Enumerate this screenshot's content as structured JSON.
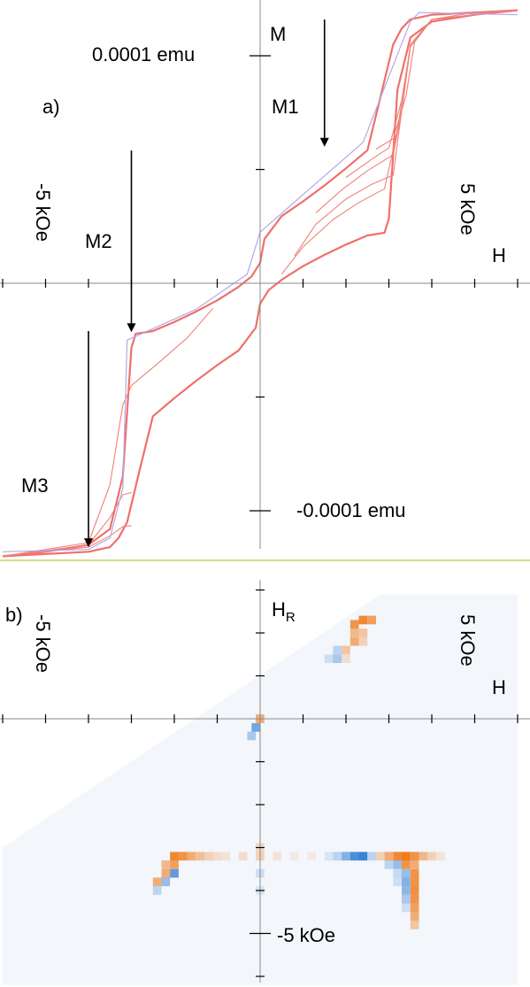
{
  "chart_data": [
    {
      "type": "line",
      "panel_label": "a)",
      "x_label": "H",
      "y_label": "M",
      "x_tick_label_left": "-5 kOe",
      "x_tick_label_right": "5 kOe",
      "y_tick_label_top": "0.0001 emu",
      "y_tick_label_bottom": "-0.0001 emu",
      "xlim": [
        -6,
        6
      ],
      "ylim": [
        -0.00012,
        0.00012
      ],
      "annotations": [
        {
          "text": "M1",
          "x": 1.5,
          "y": 6e-05
        },
        {
          "text": "M2",
          "x": -3,
          "y": -2.15e-05
        },
        {
          "text": "M3",
          "x": -4,
          "y": -0.000116
        }
      ],
      "series": [
        {
          "role": "major-branch-descending",
          "x": [
            6,
            4,
            3.5,
            3.3,
            3.1,
            2.8,
            2.5,
            2,
            1.5,
            1,
            0.5,
            0.1,
            0,
            -0.2,
            -0.5,
            -1,
            -1.5,
            -2,
            -2.5,
            -2.9,
            -3,
            -3.2,
            -3.5,
            -4,
            -5,
            -6
          ],
          "y": [
            0.00012,
            0.000118,
            0.000116,
            0.000112,
            0.000105,
            8.15e-05,
            5.85e-05,
            5.05e-05,
            4.3e-05,
            3.6e-05,
            2.95e-05,
            1.95e-05,
            9e-06,
            3e-06,
            -1.5e-06,
            -7.5e-06,
            -1.25e-05,
            -1.7e-05,
            -2.1e-05,
            -2.22e-05,
            -2.85e-05,
            -8.5e-05,
            -0.000108,
            -0.000115,
            -0.000118,
            -0.00012
          ]
        },
        {
          "role": "major-branch-ascending",
          "x": [
            -6,
            -4,
            -3.5,
            -3.3,
            -3.1,
            -2.8,
            -2.5,
            -2,
            -1.5,
            -1,
            -0.5,
            -0.1,
            0,
            0.2,
            0.5,
            1,
            1.5,
            2,
            2.5,
            2.9,
            3,
            3.2,
            3.5,
            4,
            5,
            6
          ],
          "y": [
            -0.00012,
            -0.000118,
            -0.000116,
            -0.000112,
            -0.000105,
            -8.15e-05,
            -5.85e-05,
            -5.05e-05,
            -4.3e-05,
            -3.6e-05,
            -2.95e-05,
            -1.95e-05,
            -9e-06,
            -3e-06,
            1.5e-06,
            7.5e-06,
            1.25e-05,
            1.7e-05,
            2.1e-05,
            2.22e-05,
            2.85e-05,
            8.5e-05,
            0.000108,
            0.000115,
            0.000118,
            0.00012
          ]
        },
        {
          "role": "first-order-reversal-upper",
          "x": [
            0.8,
            1.3,
            2,
            2.6,
            3.1,
            3.5,
            4,
            5,
            6
          ],
          "y": [
            1.2e-05,
            2.6e-05,
            3.7e-05,
            4.35e-05,
            4.75e-05,
            0.000105,
            0.000116,
            0.000119,
            0.00012
          ]
        },
        {
          "role": "first-order-reversal-upper",
          "x": [
            0.5,
            1,
            1.7,
            2.3,
            2.9,
            3.2,
            3.5,
            4,
            6
          ],
          "y": [
            4e-06,
            1.6e-05,
            2.8e-05,
            3.55e-05,
            4.15e-05,
            6.75e-05,
            0.000104,
            0.000116,
            0.00012
          ]
        },
        {
          "role": "first-order-reversal-upper",
          "x": [
            1.3,
            1.9,
            2.5,
            3.1,
            3.3,
            3.5,
            4,
            6
          ],
          "y": [
            3.1e-05,
            4.1e-05,
            4.95e-05,
            5.65e-05,
            7.55e-05,
            0.000104,
            0.000116,
            0.00012
          ]
        },
        {
          "role": "first-order-reversal-upper",
          "x": [
            2,
            2.6,
            3,
            3.3,
            3.5,
            4,
            6
          ],
          "y": [
            4.65e-05,
            5.45e-05,
            5.95e-05,
            8.05e-05,
            0.000104,
            0.000116,
            0.00012
          ]
        },
        {
          "role": "first-order-reversal-upper",
          "x": [
            2.7,
            3.1,
            3.4,
            3.6,
            4,
            6
          ],
          "y": [
            5.9e-05,
            6.35e-05,
            8.25e-05,
            0.000106,
            0.000116,
            0.00012
          ]
        },
        {
          "role": "first-order-reversal-lower",
          "x": [
            -1.1,
            -1.7,
            -2.4,
            -3,
            -3.2,
            -3.5,
            -4,
            -6
          ],
          "y": [
            -1.1e-05,
            -2.4e-05,
            -3.55e-05,
            -4.5e-05,
            -5.35e-05,
            -8.85e-05,
            -0.000114,
            -0.00012
          ]
        },
        {
          "role": "first-order-reversal-lower",
          "x": [
            -3,
            -3.2,
            -3.5,
            -4,
            -6
          ],
          "y": [
            -9.2e-05,
            -9.3e-05,
            -0.000103,
            -0.000115,
            -0.00012
          ]
        },
        {
          "role": "first-order-reversal-lower",
          "x": [
            -3,
            -3.2,
            -3.5,
            -4,
            -6
          ],
          "y": [
            -0.0001065,
            -0.000107,
            -0.000111,
            -0.000116,
            -0.00012
          ]
        },
        {
          "role": "initial-magnetization",
          "x": [
            6,
            3.7,
            3.5,
            2.4,
            0,
            -0.3,
            -1.5,
            -3.1,
            -3.2,
            -3.5,
            -4,
            -6
          ],
          "y": [
            0.000118,
            0.000119,
            0.000115,
            6.2e-05,
            2.25e-05,
            4e-06,
            -1.15e-05,
            -2.5e-05,
            -9e-05,
            -0.000112,
            -0.000117,
            -0.000118
          ]
        }
      ]
    },
    {
      "type": "heatmap",
      "panel_label": "b)",
      "x_label": "H",
      "y_label": "HR",
      "y_label_main": "H",
      "y_label_sub": "R",
      "x_tick_label_left": "-5 kOe",
      "x_tick_label_right": "5 kOe",
      "y_tick_label_bottom": "-5 kOe",
      "xlim": [
        -6,
        6
      ],
      "ylim": [
        -6.2,
        3.5
      ],
      "colors": {
        "positive": "#f07c1c",
        "negative": "#3a84d6",
        "background": "#dce6f4"
      },
      "cells": [
        {
          "x": 2.2,
          "y": 2.2,
          "v": 0.8
        },
        {
          "x": 2.4,
          "y": 2.3,
          "v": 0.9
        },
        {
          "x": 2.6,
          "y": 2.3,
          "v": 0.7
        },
        {
          "x": 2.2,
          "y": 2.0,
          "v": 0.5
        },
        {
          "x": 2.4,
          "y": 2.0,
          "v": 0.4
        },
        {
          "x": 2.2,
          "y": 1.8,
          "v": 0.6
        },
        {
          "x": 2.4,
          "y": 1.8,
          "v": 0.3
        },
        {
          "x": 2.0,
          "y": 1.6,
          "v": 0.4
        },
        {
          "x": 1.8,
          "y": 1.6,
          "v": -0.3
        },
        {
          "x": 2.0,
          "y": 1.4,
          "v": 0.2
        },
        {
          "x": 1.8,
          "y": 1.4,
          "v": -0.4
        },
        {
          "x": 1.6,
          "y": 1.4,
          "v": -0.2
        },
        {
          "x": 0.0,
          "y": 0.0,
          "v": 0.6
        },
        {
          "x": -0.1,
          "y": -0.2,
          "v": -0.7
        },
        {
          "x": -0.2,
          "y": -0.4,
          "v": -0.4
        },
        {
          "x": -2.0,
          "y": -3.2,
          "v": 0.9
        },
        {
          "x": -1.8,
          "y": -3.2,
          "v": 0.8
        },
        {
          "x": -1.6,
          "y": -3.2,
          "v": 0.6
        },
        {
          "x": -1.4,
          "y": -3.2,
          "v": 0.45
        },
        {
          "x": -1.2,
          "y": -3.2,
          "v": 0.3
        },
        {
          "x": -1.0,
          "y": -3.2,
          "v": 0.2
        },
        {
          "x": -0.8,
          "y": -3.2,
          "v": 0.15
        },
        {
          "x": -0.4,
          "y": -3.2,
          "v": 0.2
        },
        {
          "x": 0.0,
          "y": -3.2,
          "v": 0.3
        },
        {
          "x": 0.4,
          "y": -3.2,
          "v": 0.15
        },
        {
          "x": 0.8,
          "y": -3.2,
          "v": 0.1
        },
        {
          "x": 1.2,
          "y": -3.2,
          "v": 0.1
        },
        {
          "x": -2.0,
          "y": -3.4,
          "v": 0.7
        },
        {
          "x": -2.2,
          "y": -3.4,
          "v": 0.5
        },
        {
          "x": -2.0,
          "y": -3.6,
          "v": -0.8
        },
        {
          "x": -2.2,
          "y": -3.6,
          "v": 0.6
        },
        {
          "x": -2.2,
          "y": -3.8,
          "v": -0.5
        },
        {
          "x": -2.4,
          "y": -3.8,
          "v": 0.6
        },
        {
          "x": -2.4,
          "y": -4.0,
          "v": -0.3
        },
        {
          "x": 0.0,
          "y": -3.0,
          "v": 0.25
        },
        {
          "x": 0.0,
          "y": -3.6,
          "v": -0.2
        },
        {
          "x": 0.0,
          "y": -4.0,
          "v": -0.15
        },
        {
          "x": 2.2,
          "y": -3.2,
          "v": -0.9
        },
        {
          "x": 2.4,
          "y": -3.2,
          "v": -1.0
        },
        {
          "x": 2.0,
          "y": -3.2,
          "v": -0.6
        },
        {
          "x": 1.8,
          "y": -3.2,
          "v": -0.3
        },
        {
          "x": 1.6,
          "y": -3.2,
          "v": -0.15
        },
        {
          "x": 2.6,
          "y": -3.2,
          "v": -0.3
        },
        {
          "x": 2.8,
          "y": -3.2,
          "v": 0.3
        },
        {
          "x": 3.0,
          "y": -3.2,
          "v": 0.6
        },
        {
          "x": 3.2,
          "y": -3.2,
          "v": 0.9
        },
        {
          "x": 3.4,
          "y": -3.2,
          "v": 1.0
        },
        {
          "x": 3.6,
          "y": -3.2,
          "v": 0.8
        },
        {
          "x": 3.8,
          "y": -3.2,
          "v": 0.5
        },
        {
          "x": 4.0,
          "y": -3.2,
          "v": 0.3
        },
        {
          "x": 4.2,
          "y": -3.2,
          "v": 0.15
        },
        {
          "x": 3.2,
          "y": -3.4,
          "v": -0.5
        },
        {
          "x": 3.4,
          "y": -3.4,
          "v": 0.8
        },
        {
          "x": 3.6,
          "y": -3.4,
          "v": 0.6
        },
        {
          "x": 3.0,
          "y": -3.4,
          "v": -0.3
        },
        {
          "x": 3.4,
          "y": -3.6,
          "v": -0.5
        },
        {
          "x": 3.6,
          "y": -3.6,
          "v": 0.8
        },
        {
          "x": 3.2,
          "y": -3.6,
          "v": -0.25
        },
        {
          "x": 3.4,
          "y": -3.8,
          "v": -0.6
        },
        {
          "x": 3.6,
          "y": -3.8,
          "v": 0.8
        },
        {
          "x": 3.2,
          "y": -3.8,
          "v": -0.2
        },
        {
          "x": 3.4,
          "y": -4.0,
          "v": -0.55
        },
        {
          "x": 3.6,
          "y": -4.0,
          "v": 0.85
        },
        {
          "x": 3.4,
          "y": -4.2,
          "v": -0.4
        },
        {
          "x": 3.6,
          "y": -4.2,
          "v": 0.8
        },
        {
          "x": 3.6,
          "y": -4.4,
          "v": 0.7
        },
        {
          "x": 3.6,
          "y": -4.6,
          "v": 0.6
        },
        {
          "x": 3.6,
          "y": -4.8,
          "v": 0.4
        },
        {
          "x": 3.4,
          "y": -4.4,
          "v": -0.2
        }
      ]
    }
  ]
}
